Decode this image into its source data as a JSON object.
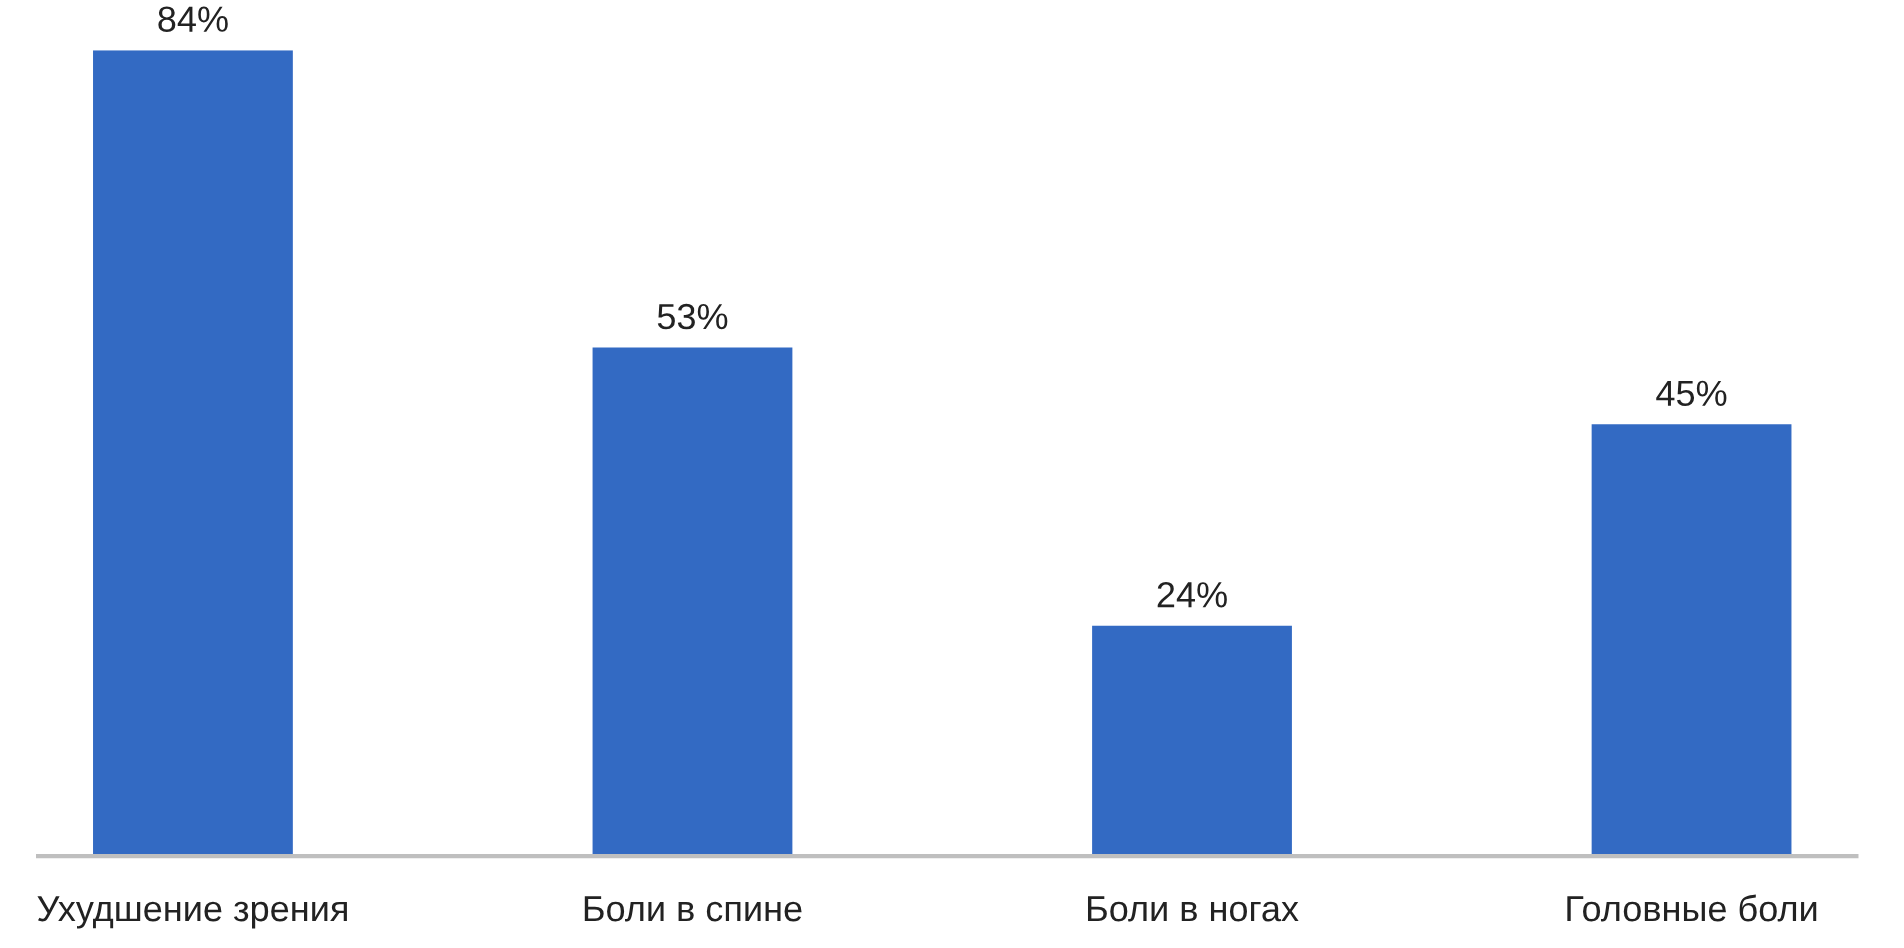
{
  "chart_data": {
    "type": "bar",
    "categories": [
      "Ухудшение зрения",
      "Боли в спине",
      "Боли в ногах",
      "Головные боли"
    ],
    "values": [
      84,
      53,
      24,
      45
    ],
    "value_labels": [
      "84%",
      "53%",
      "24%",
      "45%"
    ],
    "color": "#336ac3",
    "grid": false,
    "legend": false
  }
}
